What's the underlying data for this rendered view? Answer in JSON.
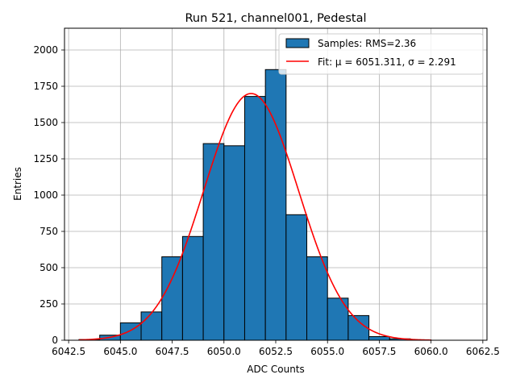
{
  "chart_data": {
    "type": "bar",
    "title": "Run 521, channel001, Pedestal",
    "xlabel": "ADC Counts",
    "ylabel": "Entries",
    "xlim": [
      6042.3,
      6062.7
    ],
    "ylim": [
      0,
      2150
    ],
    "grid": true,
    "legend_position": "top-right",
    "x_ticks": [
      "6042.5",
      "6045.0",
      "6047.5",
      "6050.0",
      "6052.5",
      "6055.0",
      "6057.5",
      "6060.0",
      "6062.5"
    ],
    "x_tick_values": [
      6042.5,
      6045.0,
      6047.5,
      6050.0,
      6052.5,
      6055.0,
      6057.5,
      6060.0,
      6062.5
    ],
    "y_ticks": [
      "0",
      "250",
      "500",
      "750",
      "1000",
      "1250",
      "1500",
      "1750",
      "2000"
    ],
    "y_tick_values": [
      0,
      250,
      500,
      750,
      1000,
      1250,
      1500,
      1750,
      2000
    ],
    "histogram": {
      "name": "Samples: RMS=2.36",
      "color": "#1f77b4",
      "bin_edges": [
        6043,
        6044,
        6045,
        6046,
        6047,
        6048,
        6049,
        6050,
        6051,
        6052,
        6053,
        6054,
        6055,
        6056,
        6057,
        6058,
        6059,
        6060,
        6061,
        6062
      ],
      "counts": [
        5,
        35,
        120,
        195,
        575,
        715,
        1355,
        1340,
        1680,
        1865,
        865,
        575,
        290,
        170,
        25,
        10,
        2,
        0,
        0
      ]
    },
    "fit": {
      "name": "Fit: μ = 6051.311, σ = 2.291",
      "color": "#ff0000",
      "mu": 6051.311,
      "sigma": 2.291,
      "amplitude": 1700,
      "x_range": [
        6043,
        6060
      ]
    }
  }
}
